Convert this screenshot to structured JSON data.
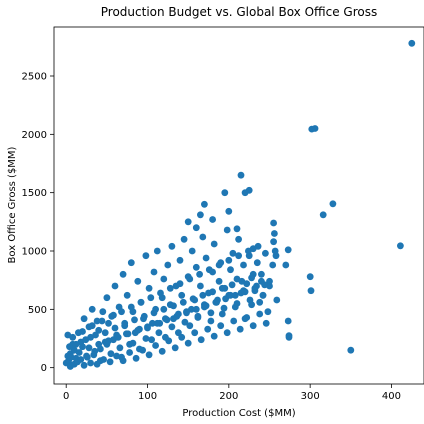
{
  "chart_data": {
    "type": "scatter",
    "title": "Production Budget vs. Global Box Office Gross",
    "xlabel": "Production Cost ($MM)",
    "ylabel": "Box Office Gross ($MM)",
    "xlim": [
      -15,
      440
    ],
    "ylim": [
      -140,
      2920
    ],
    "xticks": [
      0,
      100,
      200,
      300,
      400
    ],
    "yticks": [
      0,
      500,
      1000,
      1500,
      2000,
      2500
    ],
    "grid": false,
    "color": "#1f77b4",
    "series": [
      {
        "points": [
          [
            425,
            2780
          ],
          [
            306,
            2050
          ],
          [
            302,
            2045
          ],
          [
            328,
            1405
          ],
          [
            316,
            1310
          ],
          [
            411,
            1045
          ],
          [
            350,
            150
          ],
          [
            301,
            660
          ],
          [
            300,
            780
          ],
          [
            273,
            400
          ],
          [
            274,
            275
          ],
          [
            274,
            260
          ],
          [
            273,
            1010
          ],
          [
            270,
            880
          ],
          [
            259,
            580
          ],
          [
            258,
            960
          ],
          [
            257,
            1000
          ],
          [
            255,
            1240
          ],
          [
            256,
            1150
          ],
          [
            255,
            1080
          ],
          [
            254,
            880
          ],
          [
            225,
            1520
          ],
          [
            215,
            1650
          ],
          [
            220,
            1500
          ],
          [
            210,
            1190
          ],
          [
            230,
            1020
          ],
          [
            200,
            1340
          ],
          [
            195,
            1500
          ],
          [
            160,
            1200
          ],
          [
            180,
            1270
          ],
          [
            165,
            1310
          ],
          [
            150,
            1250
          ],
          [
            170,
            1400
          ],
          [
            0,
            40
          ],
          [
            3,
            60
          ],
          [
            5,
            120
          ],
          [
            8,
            200
          ],
          [
            2,
            280
          ],
          [
            10,
            150
          ],
          [
            12,
            80
          ],
          [
            6,
            20
          ],
          [
            15,
            300
          ],
          [
            18,
            220
          ],
          [
            20,
            180
          ],
          [
            22,
            420
          ],
          [
            25,
            100
          ],
          [
            28,
            350
          ],
          [
            30,
            260
          ],
          [
            32,
            500
          ],
          [
            35,
            140
          ],
          [
            38,
            400
          ],
          [
            40,
            320
          ],
          [
            42,
            60
          ],
          [
            45,
            480
          ],
          [
            48,
            220
          ],
          [
            50,
            600
          ],
          [
            52,
            380
          ],
          [
            55,
            120
          ],
          [
            58,
            450
          ],
          [
            60,
            700
          ],
          [
            62,
            280
          ],
          [
            65,
            520
          ],
          [
            68,
            90
          ],
          [
            70,
            800
          ],
          [
            72,
            360
          ],
          [
            75,
            620
          ],
          [
            78,
            200
          ],
          [
            80,
            900
          ],
          [
            82,
            480
          ],
          [
            85,
            300
          ],
          [
            88,
            740
          ],
          [
            90,
            160
          ],
          [
            92,
            560
          ],
          [
            95,
            420
          ],
          [
            98,
            960
          ],
          [
            100,
            340
          ],
          [
            102,
            680
          ],
          [
            105,
            240
          ],
          [
            108,
            820
          ],
          [
            110,
            500
          ],
          [
            112,
            1000
          ],
          [
            115,
            380
          ],
          [
            118,
            600
          ],
          [
            120,
            760
          ],
          [
            122,
            260
          ],
          [
            125,
            880
          ],
          [
            128,
            540
          ],
          [
            130,
            1040
          ],
          [
            132,
            420
          ],
          [
            135,
            700
          ],
          [
            138,
            300
          ],
          [
            140,
            920
          ],
          [
            142,
            620
          ],
          [
            145,
            1100
          ],
          [
            148,
            480
          ],
          [
            150,
            780
          ],
          [
            152,
            360
          ],
          [
            155,
            1000
          ],
          [
            158,
            580
          ],
          [
            160,
            860
          ],
          [
            162,
            440
          ],
          [
            165,
            700
          ],
          [
            168,
            1120
          ],
          [
            170,
            520
          ],
          [
            172,
            940
          ],
          [
            175,
            640
          ],
          [
            178,
            400
          ],
          [
            180,
            820
          ],
          [
            182,
            1060
          ],
          [
            185,
            560
          ],
          [
            188,
            740
          ],
          [
            190,
            900
          ],
          [
            192,
            460
          ],
          [
            195,
            680
          ],
          [
            198,
            1180
          ],
          [
            200,
            620
          ],
          [
            202,
            840
          ],
          [
            205,
            980
          ],
          [
            208,
            520
          ],
          [
            210,
            760
          ],
          [
            212,
            1100
          ],
          [
            215,
            640
          ],
          [
            218,
            880
          ],
          [
            220,
            420
          ],
          [
            222,
            720
          ],
          [
            225,
            960
          ],
          [
            228,
            540
          ],
          [
            230,
            800
          ],
          [
            232,
            660
          ],
          [
            235,
            900
          ],
          [
            238,
            560
          ],
          [
            240,
            740
          ],
          [
            242,
            620
          ],
          [
            245,
            980
          ],
          [
            248,
            480
          ],
          [
            250,
            700
          ],
          [
            5,
            10
          ],
          [
            10,
            30
          ],
          [
            14,
            50
          ],
          [
            18,
            70
          ],
          [
            22,
            20
          ],
          [
            26,
            90
          ],
          [
            30,
            40
          ],
          [
            34,
            110
          ],
          [
            38,
            30
          ],
          [
            42,
            160
          ],
          [
            46,
            70
          ],
          [
            50,
            200
          ],
          [
            54,
            50
          ],
          [
            58,
            240
          ],
          [
            62,
            100
          ],
          [
            66,
            170
          ],
          [
            70,
            60
          ],
          [
            74,
            290
          ],
          [
            78,
            130
          ],
          [
            82,
            210
          ],
          [
            86,
            80
          ],
          [
            90,
            330
          ],
          [
            94,
            150
          ],
          [
            98,
            250
          ],
          [
            102,
            110
          ],
          [
            106,
            380
          ],
          [
            110,
            190
          ],
          [
            114,
            300
          ],
          [
            118,
            140
          ],
          [
            122,
            420
          ],
          [
            126,
            230
          ],
          [
            130,
            350
          ],
          [
            134,
            170
          ],
          [
            138,
            460
          ],
          [
            142,
            260
          ],
          [
            146,
            390
          ],
          [
            150,
            210
          ],
          [
            154,
            500
          ],
          [
            158,
            300
          ],
          [
            162,
            430
          ],
          [
            166,
            240
          ],
          [
            170,
            540
          ],
          [
            174,
            330
          ],
          [
            178,
            470
          ],
          [
            182,
            270
          ],
          [
            186,
            580
          ],
          [
            190,
            360
          ],
          [
            194,
            510
          ],
          [
            198,
            300
          ],
          [
            202,
            620
          ],
          [
            206,
            400
          ],
          [
            210,
            550
          ],
          [
            214,
            330
          ],
          [
            218,
            660
          ],
          [
            222,
            430
          ],
          [
            226,
            580
          ],
          [
            230,
            360
          ],
          [
            234,
            700
          ],
          [
            238,
            460
          ],
          [
            242,
            620
          ],
          [
            246,
            380
          ],
          [
            250,
            740
          ],
          [
            2,
            100
          ],
          [
            4,
            180
          ],
          [
            6,
            90
          ],
          [
            8,
            260
          ],
          [
            12,
            200
          ],
          [
            16,
            130
          ],
          [
            20,
            310
          ],
          [
            24,
            240
          ],
          [
            28,
            170
          ],
          [
            32,
            360
          ],
          [
            36,
            280
          ],
          [
            40,
            200
          ],
          [
            44,
            400
          ],
          [
            48,
            300
          ],
          [
            52,
            230
          ],
          [
            56,
            440
          ],
          [
            60,
            340
          ],
          [
            64,
            260
          ],
          [
            68,
            480
          ],
          [
            72,
            380
          ],
          [
            76,
            290
          ],
          [
            80,
            520
          ],
          [
            84,
            410
          ],
          [
            88,
            320
          ],
          [
            92,
            560
          ],
          [
            96,
            440
          ],
          [
            100,
            350
          ],
          [
            104,
            600
          ],
          [
            108,
            470
          ],
          [
            112,
            380
          ],
          [
            116,
            640
          ],
          [
            120,
            500
          ],
          [
            124,
            410
          ],
          [
            128,
            680
          ],
          [
            132,
            530
          ],
          [
            136,
            440
          ],
          [
            140,
            720
          ],
          [
            144,
            560
          ],
          [
            148,
            470
          ],
          [
            152,
            760
          ],
          [
            156,
            590
          ],
          [
            160,
            500
          ],
          [
            164,
            800
          ],
          [
            168,
            620
          ],
          [
            172,
            530
          ],
          [
            176,
            840
          ],
          [
            180,
            650
          ],
          [
            184,
            560
          ],
          [
            188,
            880
          ],
          [
            192,
            680
          ],
          [
            196,
            590
          ],
          [
            200,
            920
          ],
          [
            204,
            710
          ],
          [
            208,
            620
          ],
          [
            212,
            960
          ],
          [
            216,
            740
          ],
          [
            220,
            650
          ],
          [
            224,
            1000
          ],
          [
            228,
            770
          ],
          [
            232,
            680
          ],
          [
            236,
            1040
          ],
          [
            240,
            800
          ],
          [
            244,
            710
          ]
        ]
      }
    ]
  }
}
